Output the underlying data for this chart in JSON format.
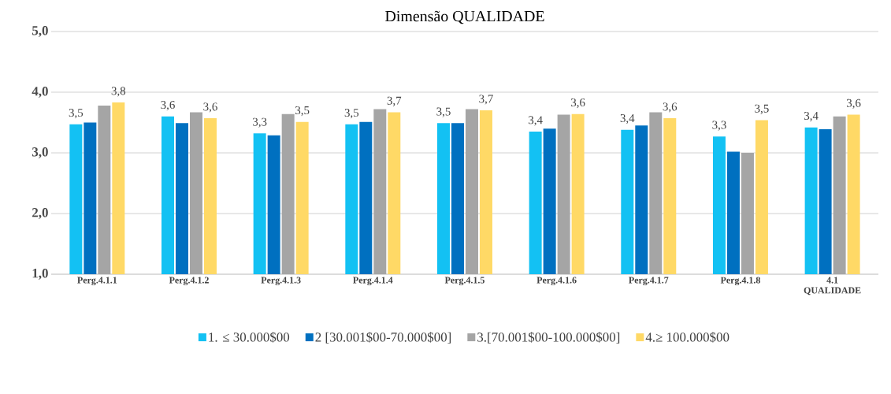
{
  "chart_data": {
    "type": "bar",
    "title": "Dimensão QUALIDADE",
    "categories": [
      "Perg.4.1.1",
      "Perg.4.1.2",
      "Perg.4.1.3",
      "Perg.4.1.4",
      "Perg.4.1.5",
      "Perg.4.1.6",
      "Perg.4.1.7",
      "Perg.4.1.8",
      "4.1 QUALIDADE"
    ],
    "series": [
      {
        "name": "1. ≤ 30.000$00",
        "color": "#13c1f3",
        "values": [
          3.47,
          3.6,
          3.32,
          3.47,
          3.49,
          3.35,
          3.38,
          3.27,
          3.42
        ],
        "value_labels": [
          "3,5",
          "3,6",
          "3,3",
          "3,5",
          "3,5",
          "3,4",
          "3,4",
          "3,3",
          "3,4"
        ]
      },
      {
        "name": "2 [30.001$00-70.000$00]",
        "color": "#0070c0",
        "values": [
          3.5,
          3.49,
          3.29,
          3.51,
          3.49,
          3.4,
          3.45,
          3.02,
          3.39
        ]
      },
      {
        "name": "3.[70.001$00-100.000$00]",
        "color": "#a5a5a5",
        "values": [
          3.78,
          3.67,
          3.64,
          3.72,
          3.72,
          3.63,
          3.67,
          3.0,
          3.6
        ]
      },
      {
        "name": "4.≥ 100.000$00",
        "color": "#ffd966",
        "values": [
          3.83,
          3.57,
          3.51,
          3.67,
          3.7,
          3.64,
          3.57,
          3.54,
          3.63
        ],
        "value_labels": [
          "3,8",
          "3,6",
          "3,5",
          "3,7",
          "3,7",
          "3,6",
          "3,6",
          "3,5",
          "3,6"
        ]
      }
    ],
    "ylim": [
      1,
      5
    ],
    "yticks": [
      {
        "value": 1,
        "label": "1,0"
      },
      {
        "value": 2,
        "label": "2,0"
      },
      {
        "value": 3,
        "label": "3,0"
      },
      {
        "value": 4,
        "label": "4,0"
      },
      {
        "value": 5,
        "label": "5,0"
      }
    ],
    "grid": "y",
    "legend": "bottom"
  }
}
